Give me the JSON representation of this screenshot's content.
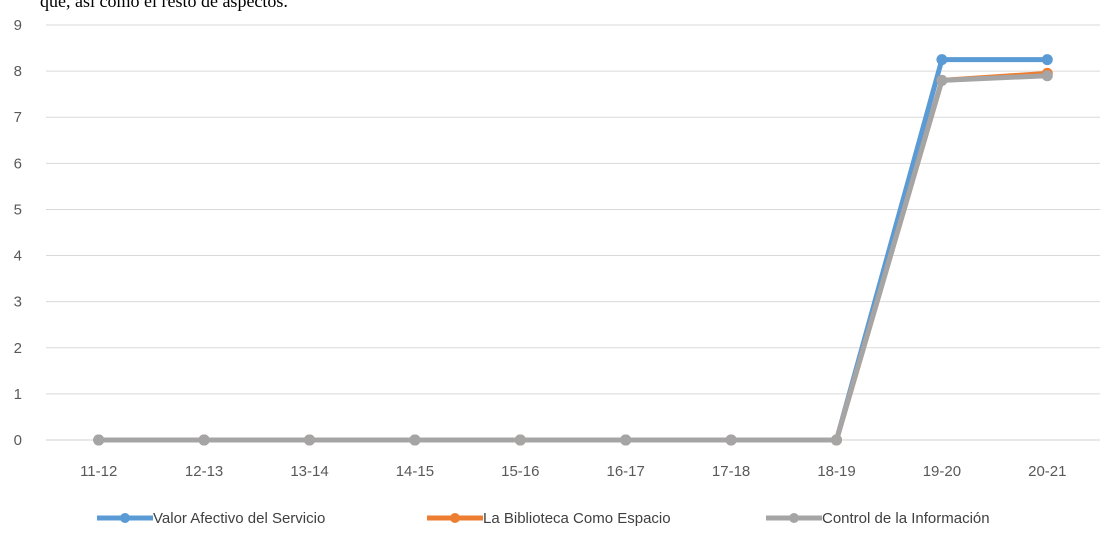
{
  "top_fragment": "que, así como el resto de aspectos.",
  "chart_data": {
    "type": "line",
    "categories": [
      "11-12",
      "12-13",
      "13-14",
      "14-15",
      "15-16",
      "16-17",
      "17-18",
      "18-19",
      "19-20",
      "20-21"
    ],
    "series": [
      {
        "name": "Valor Afectivo del Servicio",
        "color": "#5B9BD5",
        "values": [
          0,
          0,
          0,
          0,
          0,
          0,
          0,
          0,
          8.25,
          8.25
        ]
      },
      {
        "name": "La Biblioteca Como Espacio",
        "color": "#ED7D31",
        "values": [
          0,
          0,
          0,
          0,
          0,
          0,
          0,
          0,
          7.8,
          7.95
        ]
      },
      {
        "name": "Control de la Información",
        "color": "#A5A5A5",
        "values": [
          0,
          0,
          0,
          0,
          0,
          0,
          0,
          0,
          7.8,
          7.9
        ]
      }
    ],
    "ylim": [
      0,
      9
    ],
    "yticks": [
      "0",
      "1",
      "2",
      "3",
      "4",
      "5",
      "6",
      "7",
      "8",
      "9"
    ],
    "grid": true,
    "legend_position": "bottom"
  }
}
